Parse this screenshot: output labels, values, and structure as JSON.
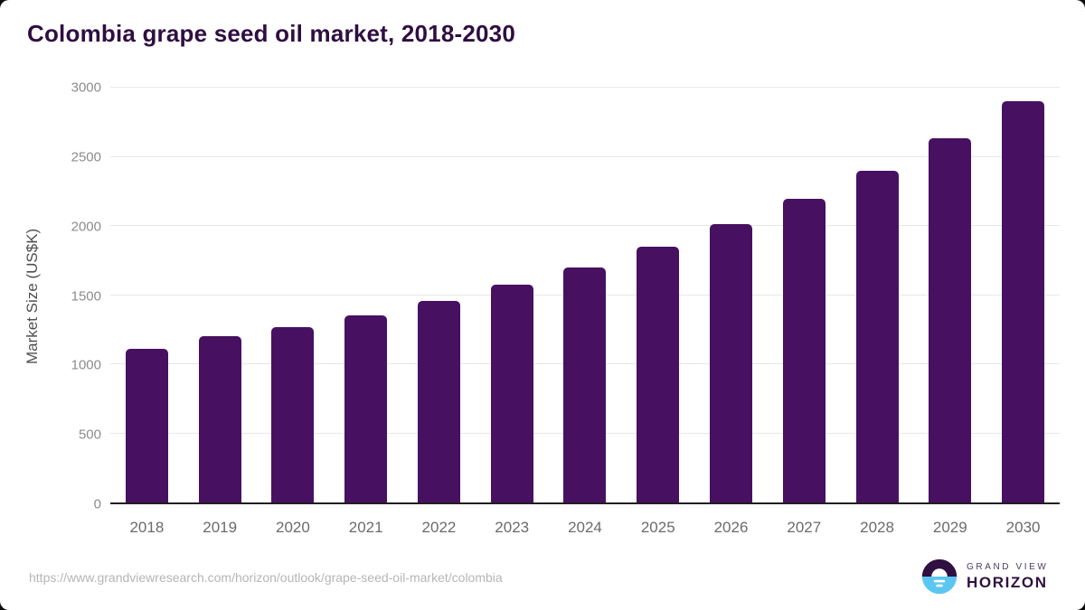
{
  "title": "Colombia grape seed oil market, 2018-2030",
  "source_url": "https://www.grandviewresearch.com/horizon/outlook/grape-seed-oil-market/colombia",
  "logo": {
    "top_text": "GRAND VIEW",
    "bottom_text": "HORIZON",
    "icon": "horizon-sun-circle-icon"
  },
  "colors": {
    "bar": "#471061",
    "title": "#2f0e41",
    "axis_title": "#4f4f4f",
    "tick_y": "#8c8c8c",
    "tick_x": "#6b6b6b",
    "gridline": "#e7e7e7",
    "axis_line": "#1f1f1f",
    "url": "#b5b5b5",
    "logo_purple": "#2f1040",
    "logo_text": "#4d3a63",
    "logo_blue": "#5bc6f2"
  },
  "chart_data": {
    "type": "bar",
    "title": "Colombia grape seed oil market, 2018-2030",
    "categories": [
      "2018",
      "2019",
      "2020",
      "2021",
      "2022",
      "2023",
      "2024",
      "2025",
      "2026",
      "2027",
      "2028",
      "2029",
      "2030"
    ],
    "values": [
      1110,
      1200,
      1270,
      1355,
      1460,
      1575,
      1700,
      1850,
      2015,
      2195,
      2400,
      2635,
      2900
    ],
    "xlabel": "",
    "ylabel": "Market Size (US$K)",
    "ylim": [
      0,
      3000
    ],
    "yticks": [
      0,
      500,
      1000,
      1500,
      2000,
      2500,
      3000
    ],
    "grid": "horizontal-light",
    "legend": "none",
    "bar_corner_radius": "rounded-top"
  }
}
